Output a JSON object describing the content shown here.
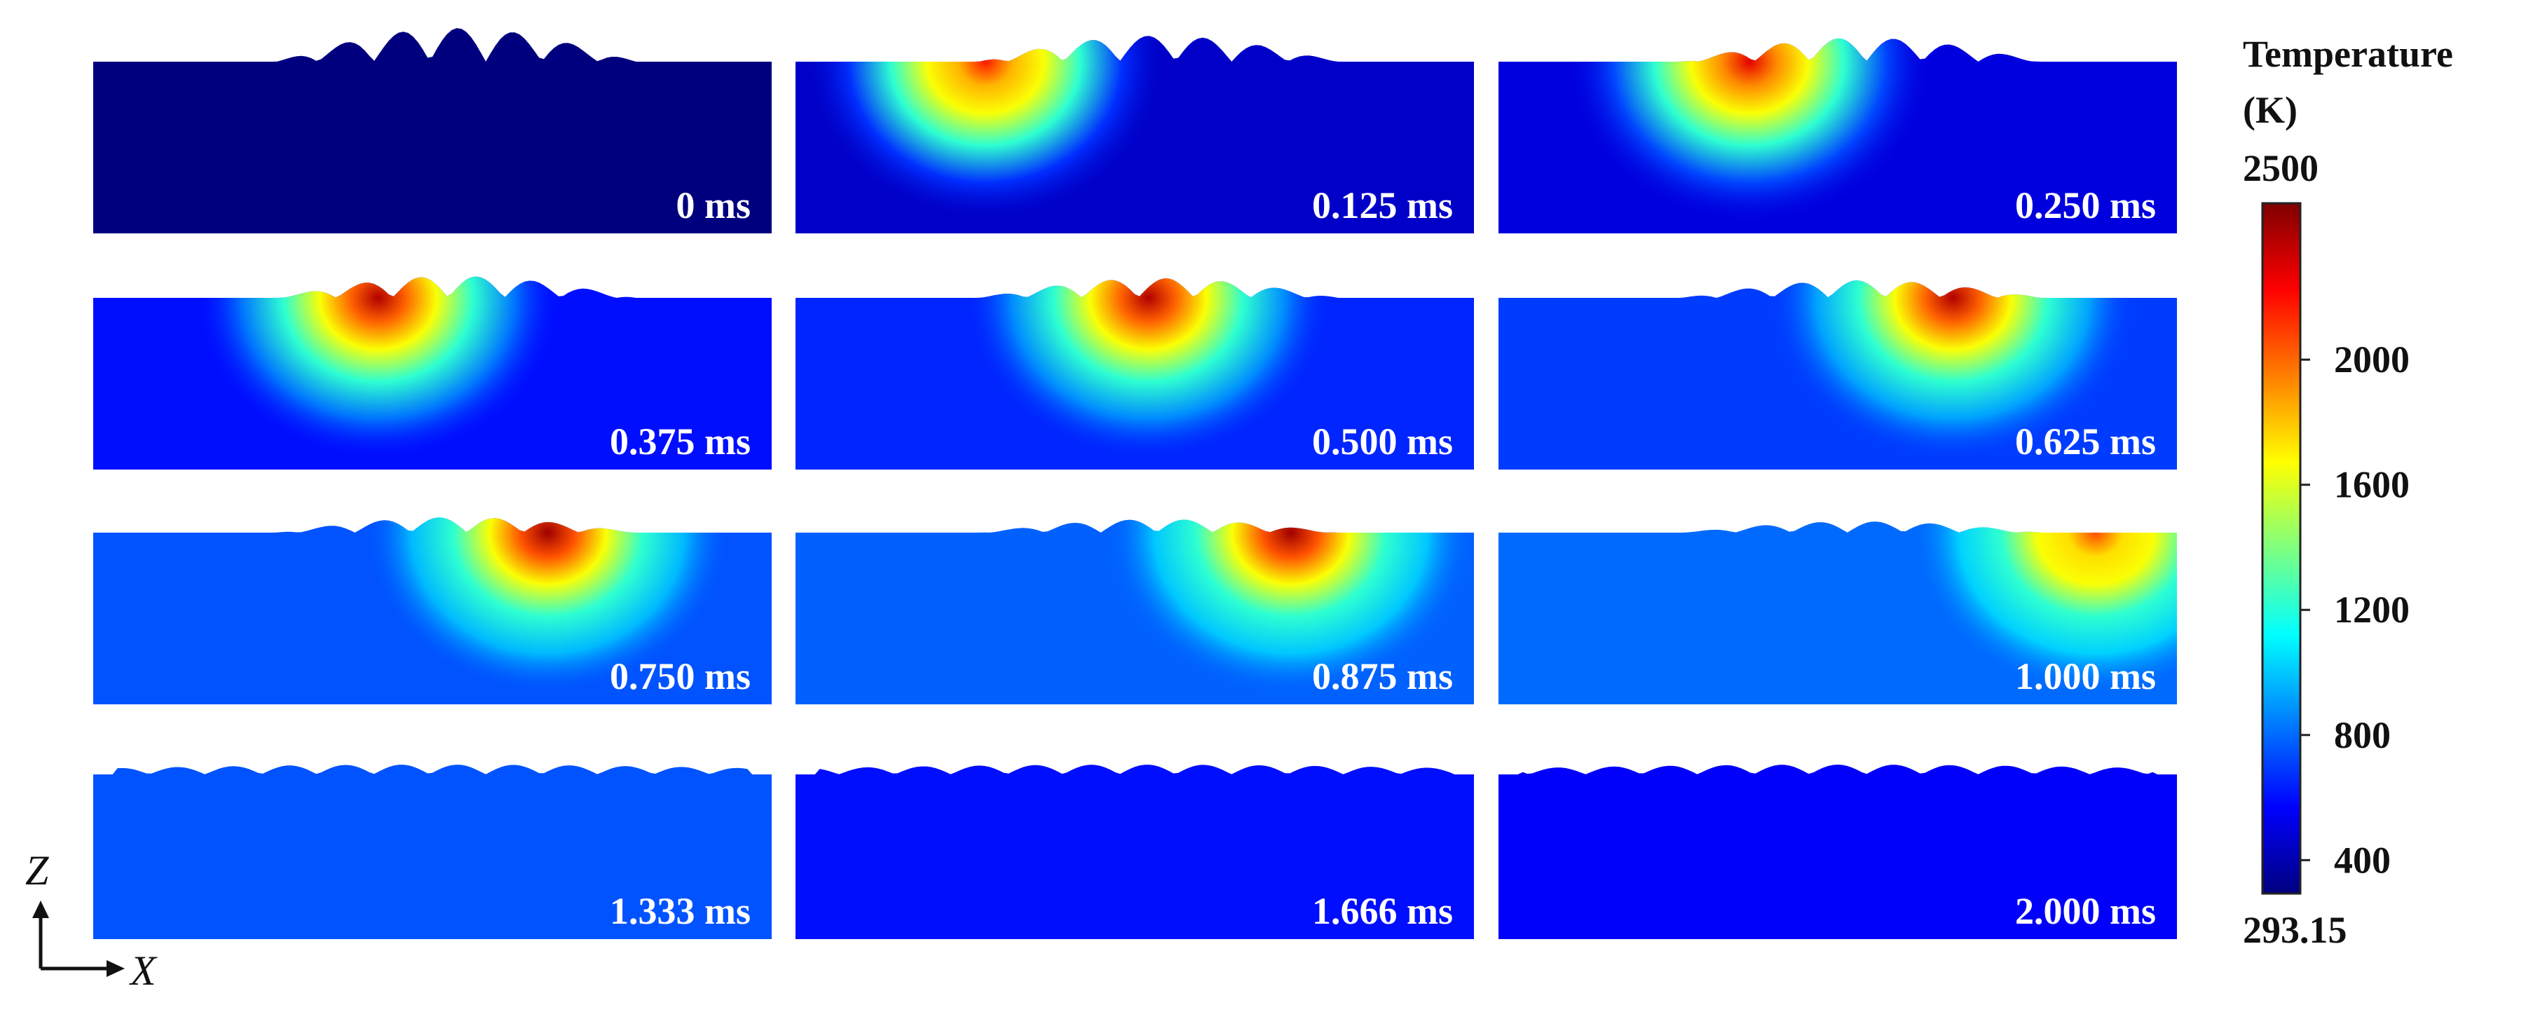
{
  "panels": [
    {
      "time_label": "0 ms",
      "hot_center": null,
      "hot_intensity": 0.0,
      "background_temp": 293.15
    },
    {
      "time_label": "0.125 ms",
      "hot_center": 0.28,
      "hot_intensity": 0.85,
      "background_temp": 450
    },
    {
      "time_label": "0.250 ms",
      "hot_center": 0.37,
      "hot_intensity": 0.9,
      "background_temp": 500
    },
    {
      "time_label": "0.375 ms",
      "hot_center": 0.42,
      "hot_intensity": 0.95,
      "background_temp": 600
    },
    {
      "time_label": "0.500 ms",
      "hot_center": 0.52,
      "hot_intensity": 0.95,
      "background_temp": 650
    },
    {
      "time_label": "0.625 ms",
      "hot_center": 0.67,
      "hot_intensity": 0.95,
      "background_temp": 700
    },
    {
      "time_label": "0.750 ms",
      "hot_center": 0.67,
      "hot_intensity": 0.97,
      "background_temp": 750
    },
    {
      "time_label": "0.875 ms",
      "hot_center": 0.73,
      "hot_intensity": 0.97,
      "background_temp": 780
    },
    {
      "time_label": "1.000 ms",
      "hot_center": 0.88,
      "hot_intensity": 0.8,
      "background_temp": 800
    },
    {
      "time_label": "1.333 ms",
      "hot_center": null,
      "hot_intensity": 0.0,
      "background_temp": 750
    },
    {
      "time_label": "1.666 ms",
      "hot_center": null,
      "hot_intensity": 0.0,
      "background_temp": 600
    },
    {
      "time_label": "2.000 ms",
      "hot_center": null,
      "hot_intensity": 0.0,
      "background_temp": 560
    }
  ],
  "colorbar": {
    "title_line1": "Temperature",
    "title_line2": "(K)",
    "max_label": "2500",
    "min_label": "293.15",
    "min": 293.15,
    "max": 2500,
    "ticks": [
      {
        "value": 2000,
        "label": "2000"
      },
      {
        "value": 1600,
        "label": "1600"
      },
      {
        "value": 1200,
        "label": "1200"
      },
      {
        "value": 800,
        "label": "800"
      },
      {
        "value": 400,
        "label": "400"
      }
    ],
    "colormap": [
      "#00007f",
      "#0000ff",
      "#007fff",
      "#00ffff",
      "#7fff7f",
      "#ffff00",
      "#ff7f00",
      "#ff0000",
      "#7f0000"
    ]
  },
  "axes": {
    "z_label": "Z",
    "x_label": "X"
  }
}
